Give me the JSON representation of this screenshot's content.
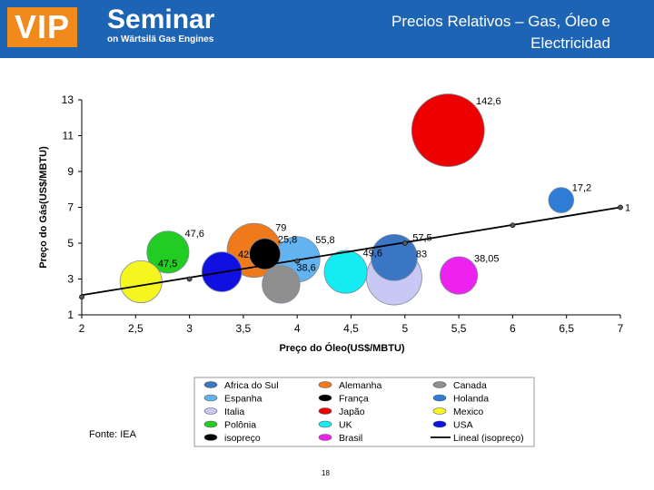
{
  "header": {
    "logo_vip": "VIP",
    "logo_seminar": "Seminar",
    "logo_subtitle": "on Wärtsilä Gas Engines",
    "title": "Precios Relativos – Gas, Óleo e Electricidad"
  },
  "footer": {
    "source": "Fonte: IEA",
    "page_number": "18"
  },
  "colors": {
    "header_bg": "#1e64b4",
    "logo_bg": "#f08a1c"
  },
  "chart_data": {
    "type": "scatter",
    "title": "",
    "xlabel": "Preço do Óleo(US$/MBTU)",
    "ylabel": "Preço do Gás(US$/MBTU)",
    "xlim": [
      2,
      7
    ],
    "ylim": [
      1,
      13
    ],
    "xticks": [
      "2",
      "2,5",
      "3",
      "3,5",
      "4",
      "4,5",
      "5",
      "5,5",
      "6",
      "6,5",
      "7"
    ],
    "yticks": [
      "1",
      "3",
      "5",
      "7",
      "9",
      "11",
      "13"
    ],
    "grid": false,
    "legend_position": "bottom",
    "series": [
      {
        "name": "Africa do Sul",
        "x": 4.9,
        "y": 4.2,
        "size": 57.5,
        "label": "57,5",
        "color": "#3a76c4"
      },
      {
        "name": "Alemanha",
        "x": 3.6,
        "y": 4.6,
        "size": 79,
        "label": "79",
        "color": "#ef7a1c"
      },
      {
        "name": "Canada",
        "x": 3.85,
        "y": 2.7,
        "size": 38.6,
        "label": "38,6",
        "color": "#8f8f8f"
      },
      {
        "name": "Espanha",
        "x": 4.0,
        "y": 4.1,
        "size": 55.8,
        "label": "55,8",
        "color": "#62b3f0"
      },
      {
        "name": "França",
        "x": 3.7,
        "y": 4.4,
        "size": 25.8,
        "label": "25,8",
        "color": "#000000"
      },
      {
        "name": "Holanda",
        "x": 6.45,
        "y": 7.4,
        "size": 17.2,
        "label": "17,2",
        "color": "#2e7cd6"
      },
      {
        "name": "Italia",
        "x": 4.9,
        "y": 3.1,
        "size": 83,
        "label": "83",
        "color": "#c8c8f4"
      },
      {
        "name": "Japão",
        "x": 5.4,
        "y": 11.3,
        "size": 142.6,
        "label": "142,6",
        "color": "#ee0000"
      },
      {
        "name": "Mexico",
        "x": 2.55,
        "y": 2.85,
        "size": 47.5,
        "label": "47,5",
        "color": "#f5f520"
      },
      {
        "name": "Polônia",
        "x": 2.8,
        "y": 4.5,
        "size": 47.6,
        "label": "47,6",
        "color": "#22cc22"
      },
      {
        "name": "UK",
        "x": 4.45,
        "y": 3.4,
        "size": 49.6,
        "label": "49,6",
        "color": "#14ecf2"
      },
      {
        "name": "USA",
        "x": 3.3,
        "y": 3.4,
        "size": 42.7,
        "label": "42,7",
        "color": "#1010e0"
      },
      {
        "name": "isopreço",
        "x": [
          2,
          3,
          4,
          5,
          6,
          7
        ],
        "y": [
          2,
          3,
          4,
          5,
          6,
          7
        ],
        "label": "1",
        "color": "#000000"
      },
      {
        "name": "Brasil",
        "x": 5.5,
        "y": 3.2,
        "size": 38.05,
        "label": "38,05",
        "color": "#ee22ee"
      },
      {
        "name": "Lineal (isopreço)",
        "x": [
          2,
          7
        ],
        "y": [
          2.1,
          7.0
        ],
        "color": "#000000"
      }
    ]
  }
}
